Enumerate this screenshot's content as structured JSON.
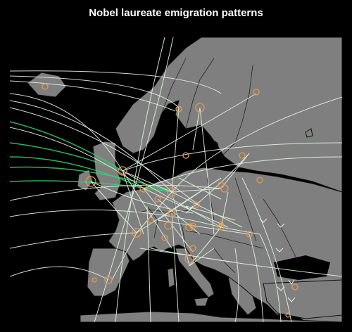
{
  "title": "Nobel laureate emigration patterns",
  "colors": {
    "background": "#000000",
    "land": "#7f7f7f",
    "borders": "#111111",
    "city_marker": "#e39a55",
    "flow_line": "#e6f6e6",
    "flow_line_highlight": "#2fd66b"
  }
}
